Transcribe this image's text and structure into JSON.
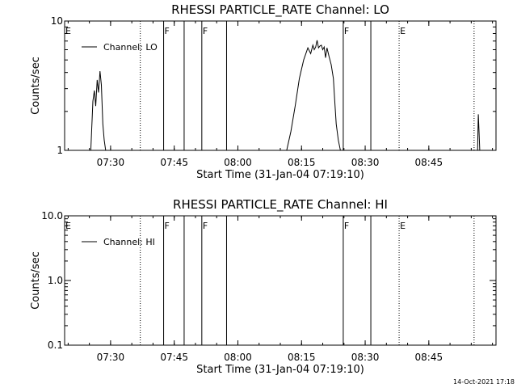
{
  "footer": {
    "timestamp": "14-Oct-2021 17:18"
  },
  "chart_data": [
    {
      "type": "line",
      "title": "RHESSI PARTICLE_RATE Channel: LO",
      "xlabel": "Start Time (31-Jan-04 07:19:10)",
      "ylabel": "Counts/sec",
      "yscale": "log",
      "ylim": [
        1,
        10
      ],
      "xlim": [
        "07:19:10",
        "09:00:50"
      ],
      "x_ticks": [
        "07:30",
        "07:45",
        "08:00",
        "08:15",
        "08:30",
        "08:45"
      ],
      "y_ticks": [
        "1",
        "10"
      ],
      "legend": {
        "entries": [
          "Channel: LO"
        ],
        "placement": "top-left"
      },
      "series": [
        {
          "name": "Channel: LO",
          "x": [
            "07:25:20",
            "07:25:50",
            "07:26:10",
            "07:26:30",
            "07:26:50",
            "07:27:10",
            "07:27:30",
            "07:27:50",
            "07:28:10",
            "07:28:30",
            "07:28:50",
            "08:11:30",
            "08:12:30",
            "08:13:30",
            "08:14:30",
            "08:15:30",
            "08:16:30",
            "08:17:10",
            "08:17:40",
            "08:18:00",
            "08:18:20",
            "08:18:40",
            "08:19:00",
            "08:19:20",
            "08:19:40",
            "08:20:00",
            "08:20:20",
            "08:20:40",
            "08:21:00",
            "08:21:30",
            "08:22:00",
            "08:22:30",
            "08:22:50",
            "08:23:10",
            "08:23:40",
            "08:24:10",
            "08:24:40",
            "08:25:00",
            "08:56:30",
            "08:56:40",
            "08:56:50",
            "08:57:00"
          ],
          "values": [
            1.0,
            2.4,
            2.9,
            2.2,
            3.5,
            2.8,
            4.1,
            3.2,
            1.6,
            1.2,
            1.0,
            1.0,
            1.4,
            2.2,
            3.6,
            5.0,
            6.2,
            5.6,
            6.5,
            6.0,
            6.3,
            7.1,
            6.2,
            6.4,
            6.5,
            6.0,
            6.3,
            5.2,
            6.2,
            5.3,
            4.6,
            3.6,
            2.4,
            1.6,
            1.2,
            1.0,
            1.0,
            1.0,
            1.0,
            1.9,
            1.4,
            1.0
          ]
        }
      ],
      "events": [
        {
          "time": "07:19:10",
          "label": "E",
          "style": "dotted"
        },
        {
          "time": "07:37:00",
          "label": "",
          "style": "dotted"
        },
        {
          "time": "07:42:30",
          "label": "F",
          "style": "solid"
        },
        {
          "time": "07:47:20",
          "label": "",
          "style": "solid"
        },
        {
          "time": "07:51:30",
          "label": "F",
          "style": "solid"
        },
        {
          "time": "07:57:20",
          "label": "",
          "style": "solid"
        },
        {
          "time": "08:24:50",
          "label": "F",
          "style": "solid"
        },
        {
          "time": "08:31:20",
          "label": "",
          "style": "solid"
        },
        {
          "time": "08:38:00",
          "label": "E",
          "style": "dotted"
        },
        {
          "time": "08:55:40",
          "label": "",
          "style": "dotted"
        }
      ]
    },
    {
      "type": "line",
      "title": "RHESSI PARTICLE_RATE Channel: HI",
      "xlabel": "Start Time (31-Jan-04 07:19:10)",
      "ylabel": "Counts/sec",
      "yscale": "log",
      "ylim": [
        0.1,
        10.0
      ],
      "xlim": [
        "07:19:10",
        "09:00:50"
      ],
      "x_ticks": [
        "07:30",
        "07:45",
        "08:00",
        "08:15",
        "08:30",
        "08:45"
      ],
      "y_ticks": [
        "0.1",
        "1.0",
        "10.0"
      ],
      "legend": {
        "entries": [
          "Channel: HI"
        ],
        "placement": "top-left"
      },
      "series": [
        {
          "name": "Channel: HI",
          "x": [],
          "values": []
        }
      ],
      "events": [
        {
          "time": "07:19:10",
          "label": "E",
          "style": "dotted"
        },
        {
          "time": "07:37:00",
          "label": "",
          "style": "dotted"
        },
        {
          "time": "07:42:30",
          "label": "F",
          "style": "solid"
        },
        {
          "time": "07:47:20",
          "label": "",
          "style": "solid"
        },
        {
          "time": "07:51:30",
          "label": "F",
          "style": "solid"
        },
        {
          "time": "07:57:20",
          "label": "",
          "style": "solid"
        },
        {
          "time": "08:24:50",
          "label": "F",
          "style": "solid"
        },
        {
          "time": "08:31:20",
          "label": "",
          "style": "solid"
        },
        {
          "time": "08:38:00",
          "label": "E",
          "style": "dotted"
        },
        {
          "time": "08:55:40",
          "label": "",
          "style": "dotted"
        }
      ]
    }
  ]
}
